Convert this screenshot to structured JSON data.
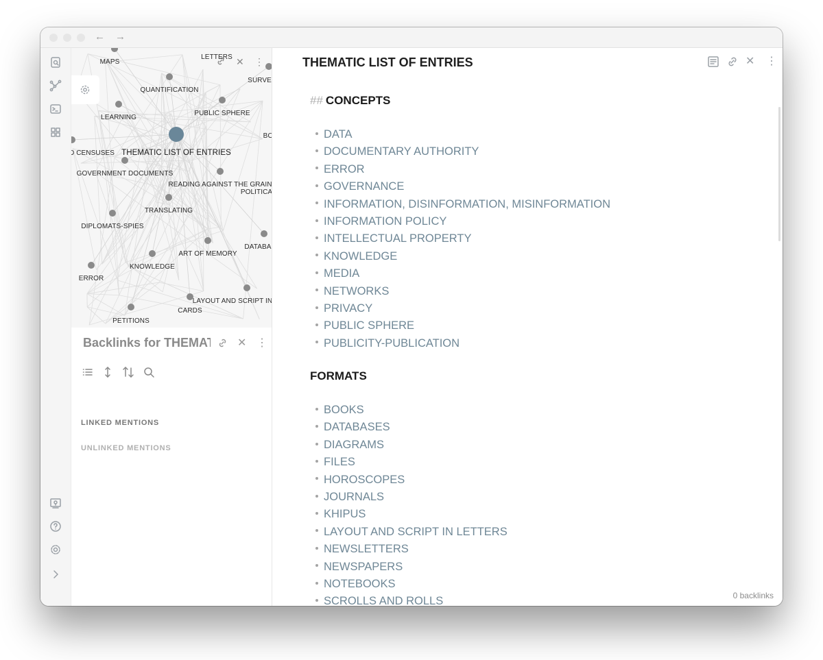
{
  "nav": {
    "back": "←",
    "forward": "→"
  },
  "graph": {
    "close": "✕",
    "more": "⋮",
    "nodes": [
      {
        "id": "maps",
        "label": "MAPS"
      },
      {
        "id": "letters",
        "label": "LETTERS"
      },
      {
        "id": "surveys",
        "label": "SURVEI"
      },
      {
        "id": "quantification",
        "label": "QUANTIFICATION"
      },
      {
        "id": "learning",
        "label": "LEARNING"
      },
      {
        "id": "public-sphere",
        "label": "PUBLIC SPHERE"
      },
      {
        "id": "bo",
        "label": "BO"
      },
      {
        "id": "censuses",
        "label": "D CENSUSES"
      },
      {
        "id": "thematic",
        "label": "THEMATIC LIST OF ENTRIES"
      },
      {
        "id": "gov-docs",
        "label": "GOVERNMENT DOCUMENTS"
      },
      {
        "id": "reading",
        "label": "READING AGAINST THE GRAIN"
      },
      {
        "id": "politica",
        "label": "POLITICA"
      },
      {
        "id": "translating",
        "label": "TRANSLATING"
      },
      {
        "id": "diplomats",
        "label": "DIPLOMATS-SPIES"
      },
      {
        "id": "art-memory",
        "label": "ART OF MEMORY"
      },
      {
        "id": "databa",
        "label": "DATABA"
      },
      {
        "id": "knowledge",
        "label": "KNOWLEDGE"
      },
      {
        "id": "error",
        "label": "ERROR"
      },
      {
        "id": "layout",
        "label": "LAYOUT AND SCRIPT IN"
      },
      {
        "id": "cards",
        "label": "CARDS"
      },
      {
        "id": "petitions",
        "label": "PETITIONS"
      }
    ]
  },
  "backlinks": {
    "title": "Backlinks for THEMATIC LIST OF ENTRIES",
    "close": "✕",
    "more": "⋮",
    "linked": "LINKED MENTIONS",
    "unlinked": "UNLINKED MENTIONS"
  },
  "note": {
    "title": "THEMATIC LIST OF ENTRIES",
    "close": "✕",
    "more": "⋮",
    "sections": [
      {
        "marks": "##",
        "heading": "CONCEPTS",
        "items": [
          "DATA",
          "DOCUMENTARY AUTHORITY",
          "ERROR",
          "GOVERNANCE",
          "INFORMATION, DISINFORMATION, MISINFORMATION",
          "INFORMATION POLICY",
          "INTELLECTUAL PROPERTY",
          "KNOWLEDGE",
          "MEDIA",
          "NETWORKS",
          "PRIVACY",
          "PUBLIC SPHERE",
          "PUBLICITY-PUBLICATION"
        ]
      },
      {
        "marks": "",
        "heading": "FORMATS",
        "items": [
          "BOOKS",
          "DATABASES",
          "DIAGRAMS",
          "FILES",
          "HOROSCOPES",
          "JOURNALS",
          "KHIPUS",
          "LAYOUT AND SCRIPT IN LETTERS",
          "NEWSLETTERS",
          "NEWSPAPERS",
          "NOTEBOOKS",
          "SCROLLS AND ROLLS"
        ]
      }
    ]
  },
  "status": {
    "backlinks": "0 backlinks"
  },
  "colors": {
    "link": "#6f8796",
    "node": "#8a8a8a",
    "active_node": "#6a8799"
  }
}
